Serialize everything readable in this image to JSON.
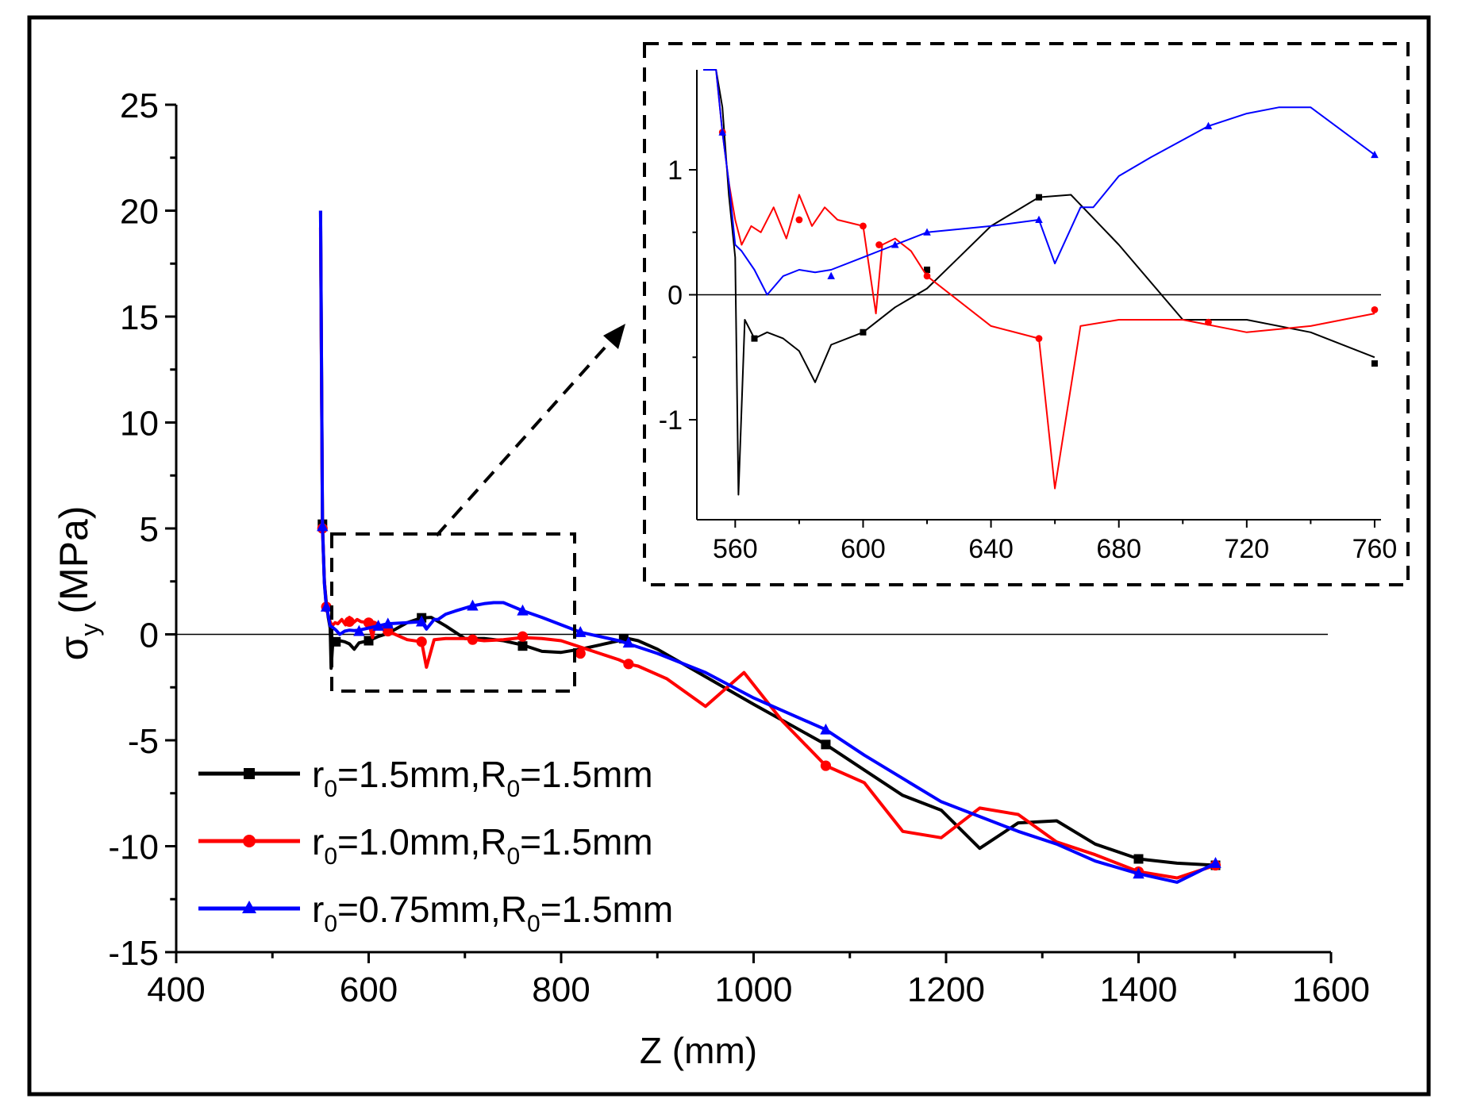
{
  "chart_data": [
    {
      "id": "main",
      "type": "line",
      "xlabel": "Z (mm)",
      "ylabel_symbol": "σ",
      "ylabel_sub": "y",
      "ylabel_unit": "(MPa)",
      "xlim": [
        400,
        1600
      ],
      "ylim": [
        -15,
        25
      ],
      "xticks": [
        400,
        600,
        800,
        1000,
        1200,
        1400,
        1600
      ],
      "yticks": [
        -15,
        -10,
        -5,
        0,
        5,
        10,
        15,
        20,
        25
      ],
      "xtick_labels": [
        "400",
        "600",
        "800",
        "1000",
        "1200",
        "1400",
        "1600"
      ],
      "ytick_labels": [
        "-15",
        "-10",
        "-5",
        "0",
        "5",
        "10",
        "15",
        "20",
        "25"
      ],
      "reference_line_y": 0,
      "legend_position": "bottom-left",
      "series": [
        {
          "key": "black",
          "legend_r": "r",
          "legend_r_sub": "0",
          "legend_mid": "=1.5mm,R",
          "legend_R_sub": "0",
          "legend_tail": "=1.5mm",
          "color": "#000000",
          "marker": "square",
          "x": [
            550,
            552,
            554,
            556,
            558,
            560,
            561,
            563,
            566,
            570,
            575,
            580,
            585,
            590,
            600,
            610,
            620,
            630,
            640,
            655,
            665,
            680,
            700,
            720,
            740,
            760,
            780,
            800,
            820,
            840,
            860,
            870,
            880,
            900,
            950,
            1000,
            1075,
            1115,
            1155,
            1195,
            1235,
            1275,
            1315,
            1355,
            1400,
            1440,
            1480
          ],
          "y": [
            20,
            5.2,
            2.5,
            1.5,
            0.8,
            0.3,
            -1.6,
            -0.2,
            -0.35,
            -0.3,
            -0.35,
            -0.45,
            -0.7,
            -0.4,
            -0.3,
            -0.1,
            0.05,
            0.3,
            0.55,
            0.78,
            0.8,
            0.4,
            -0.2,
            -0.2,
            -0.3,
            -0.5,
            -0.8,
            -0.85,
            -0.7,
            -0.5,
            -0.3,
            -0.2,
            -0.3,
            -0.7,
            -2,
            -3.3,
            -5.2,
            -6.4,
            -7.6,
            -8.3,
            -10.1,
            -8.9,
            -8.8,
            -9.9,
            -10.6,
            -10.8,
            -10.9
          ],
          "marker_x": [
            552,
            566,
            600,
            620,
            655,
            760,
            865,
            1075,
            1400,
            1480
          ],
          "marker_y": [
            5.2,
            -0.35,
            -0.3,
            0.2,
            0.78,
            -0.55,
            -0.2,
            -5.2,
            -10.6,
            -10.9
          ]
        },
        {
          "key": "red",
          "legend_r": "r",
          "legend_r_sub": "0",
          "legend_mid": "=1.0mm,R",
          "legend_R_sub": "0",
          "legend_tail": "=1.5mm",
          "color": "#ff0000",
          "marker": "circle",
          "x": [
            550,
            552,
            554,
            556,
            558,
            560,
            562,
            565,
            568,
            572,
            576,
            580,
            584,
            588,
            592,
            600,
            604,
            606,
            610,
            615,
            620,
            640,
            655,
            660,
            668,
            680,
            700,
            720,
            740,
            760,
            780,
            800,
            820,
            840,
            860,
            870,
            880,
            910,
            950,
            990,
            1030,
            1075,
            1115,
            1155,
            1195,
            1235,
            1275,
            1315,
            1355,
            1400,
            1440,
            1480
          ],
          "y": [
            19.2,
            5,
            2.5,
            1.3,
            0.9,
            0.6,
            0.4,
            0.55,
            0.5,
            0.7,
            0.45,
            0.8,
            0.55,
            0.7,
            0.6,
            0.55,
            -0.15,
            0.4,
            0.45,
            0.35,
            0.15,
            -0.25,
            -0.35,
            -1.55,
            -0.25,
            -0.2,
            -0.2,
            -0.3,
            -0.25,
            -0.15,
            -0.2,
            -0.3,
            -0.6,
            -0.9,
            -1.2,
            -1.4,
            -1.5,
            -2.1,
            -3.4,
            -1.8,
            -4.1,
            -6.2,
            -7,
            -9.3,
            -9.6,
            -8.2,
            -8.5,
            -9.8,
            -10.4,
            -11.2,
            -11.5,
            -10.9
          ],
          "marker_x": [
            552,
            556,
            580,
            600,
            605,
            620,
            655,
            708,
            760,
            820,
            870,
            1075,
            1400,
            1480
          ],
          "marker_y": [
            5,
            1.3,
            0.6,
            0.55,
            0.4,
            0.15,
            -0.35,
            -0.25,
            -0.1,
            -0.9,
            -1.4,
            -6.2,
            -11.2,
            -10.9
          ],
          "inset_marker_x": [
            556,
            580,
            600,
            605,
            620,
            655,
            708,
            760
          ],
          "inset_marker_y": [
            1.3,
            0.6,
            0.55,
            0.4,
            0.15,
            -0.35,
            -0.22,
            -0.12
          ]
        },
        {
          "key": "blue",
          "legend_r": "r",
          "legend_r_sub": "0",
          "legend_mid": "=0.75mm,R",
          "legend_R_sub": "0",
          "legend_tail": "=1.5mm",
          "color": "#0000ff",
          "marker": "triangle",
          "x": [
            550,
            552,
            554,
            556,
            558,
            560,
            562,
            566,
            570,
            575,
            580,
            585,
            590,
            600,
            610,
            620,
            640,
            655,
            660,
            668,
            672,
            680,
            690,
            708,
            720,
            730,
            740,
            760,
            780,
            820,
            860,
            900,
            950,
            1000,
            1075,
            1115,
            1155,
            1195,
            1235,
            1275,
            1315,
            1355,
            1400,
            1440,
            1480
          ],
          "y": [
            20,
            5.1,
            2.4,
            1.3,
            0.9,
            0.4,
            0.35,
            0.2,
            0,
            0.15,
            0.2,
            0.18,
            0.2,
            0.3,
            0.4,
            0.5,
            0.55,
            0.6,
            0.25,
            0.7,
            0.7,
            0.95,
            1.1,
            1.35,
            1.45,
            1.5,
            1.5,
            1.12,
            0.8,
            0.1,
            -0.3,
            -0.9,
            -1.8,
            -3,
            -4.5,
            -5.7,
            -6.8,
            -7.9,
            -8.6,
            -9.3,
            -9.9,
            -10.7,
            -11.3,
            -11.7,
            -10.8
          ],
          "marker_x": [
            552,
            556,
            590,
            610,
            620,
            655,
            708,
            760,
            820,
            870,
            1075,
            1400,
            1480
          ],
          "marker_y": [
            5.1,
            1.3,
            0.15,
            0.4,
            0.5,
            0.6,
            1.35,
            1.12,
            0.1,
            -0.4,
            -4.5,
            -11.3,
            -10.8
          ]
        }
      ]
    },
    {
      "id": "inset",
      "type": "line",
      "xlim": [
        548,
        762
      ],
      "ylim": [
        -1.8,
        1.8
      ],
      "xticks": [
        560,
        600,
        640,
        680,
        720,
        760
      ],
      "yticks": [
        -1,
        0,
        1
      ],
      "xtick_labels": [
        "560",
        "600",
        "640",
        "680",
        "720",
        "760"
      ],
      "ytick_labels": [
        "-1",
        "0",
        "1"
      ],
      "reference_line_y": 0,
      "note": "zoomed view of the dashed region of the main chart, same three series"
    }
  ],
  "colors": {
    "frame": "#000000",
    "background": "#ffffff",
    "series_black": "#000000",
    "series_red": "#ff0000",
    "series_blue": "#0000ff"
  }
}
